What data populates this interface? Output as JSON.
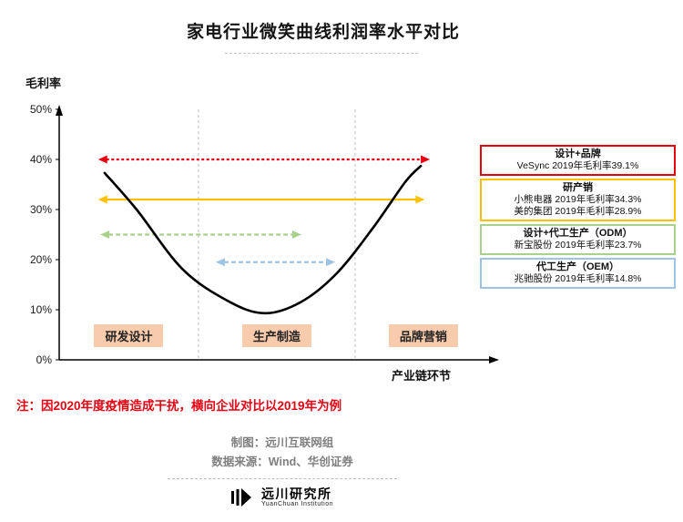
{
  "page": {
    "title": "家电行业微笑曲线利润率水平对比",
    "note": "注：因2020年度疫情造成干扰，横向企业对比以2019年为例",
    "footer": {
      "credit": "制图：远川互联网组",
      "source": "数据来源：Wind、华创证券",
      "logo_name": "远川研究所",
      "logo_sub": "YuanChuan Institution"
    }
  },
  "chart_data": {
    "type": "line",
    "title": "家电行业微笑曲线利润率水平对比",
    "ylabel": "毛利率",
    "xlabel": "产业链环节",
    "ylim": [
      0,
      50
    ],
    "yticks": [
      "0%",
      "10%",
      "20%",
      "30%",
      "40%",
      "50%"
    ],
    "ytick_values": [
      0,
      10,
      20,
      30,
      40,
      50
    ],
    "stages": [
      "研发设计",
      "生产制造",
      "品牌营销"
    ],
    "stage_dividers_x": [
      0.322,
      0.684
    ],
    "curve": {
      "color": "#000000",
      "points": [
        {
          "x": 0.105,
          "pct": 37.3
        },
        {
          "x": 0.179,
          "pct": 30.0
        },
        {
          "x": 0.284,
          "pct": 18.2
        },
        {
          "x": 0.389,
          "pct": 11.8
        },
        {
          "x": 0.474,
          "pct": 9.3
        },
        {
          "x": 0.558,
          "pct": 11.5
        },
        {
          "x": 0.642,
          "pct": 17.3
        },
        {
          "x": 0.726,
          "pct": 26.4
        },
        {
          "x": 0.8,
          "pct": 35.5
        },
        {
          "x": 0.836,
          "pct": 38.7
        }
      ]
    },
    "arrows": [
      {
        "label": "设计+品牌",
        "pct": 40,
        "x1": 0.09,
        "x2": 0.857,
        "color": "#e60012",
        "dash": "3,2.5"
      },
      {
        "label": "研产销",
        "pct": 32,
        "x1": 0.09,
        "x2": 0.845,
        "color": "#ffc000",
        "dash": ""
      },
      {
        "label": "设计+代工生产（ODM）",
        "pct": 25,
        "x1": 0.095,
        "x2": 0.56,
        "color": "#a9d18e",
        "dash": "5,3"
      },
      {
        "label": "代工生产（OEM）",
        "pct": 19.5,
        "x1": 0.362,
        "x2": 0.638,
        "color": "#9dc3e6",
        "dash": "5,3"
      }
    ],
    "legend": [
      {
        "title": "设计+品牌",
        "lines": [
          "VeSync  2019年毛利率39.1%"
        ],
        "color": "#e60012"
      },
      {
        "title": "研产销",
        "lines": [
          "小熊电器 2019年毛利率34.3%",
          "美的集团 2019年毛利率28.9%"
        ],
        "color": "#ffc000"
      },
      {
        "title": "设计+代工生产（ODM）",
        "lines": [
          "新宝股份 2019年毛利率23.7%"
        ],
        "color": "#a9d18e"
      },
      {
        "title": "代工生产（OEM）",
        "lines": [
          "兆驰股份 2019年毛利率14.8%"
        ],
        "color": "#9dc3e6"
      }
    ],
    "companies": [
      {
        "category": "设计+品牌",
        "company": "VeSync",
        "year": 2019,
        "gross_margin_pct": 39.1
      },
      {
        "category": "研产销",
        "company": "小熊电器",
        "year": 2019,
        "gross_margin_pct": 34.3
      },
      {
        "category": "研产销",
        "company": "美的集团",
        "year": 2019,
        "gross_margin_pct": 28.9
      },
      {
        "category": "设计+代工生产（ODM）",
        "company": "新宝股份",
        "year": 2019,
        "gross_margin_pct": 23.7
      },
      {
        "category": "代工生产（OEM）",
        "company": "兆驰股份",
        "year": 2019,
        "gross_margin_pct": 14.8
      }
    ]
  }
}
